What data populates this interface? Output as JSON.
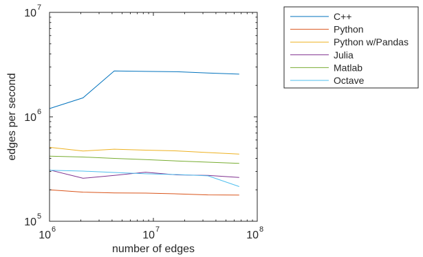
{
  "chart_data": {
    "type": "line",
    "title": "",
    "xlabel": "number of edges",
    "ylabel": "edges per second",
    "xscale": "log",
    "yscale": "log",
    "xlim": [
      1000000,
      100000000
    ],
    "ylim": [
      100000,
      10000000
    ],
    "x_ticks": [
      {
        "value": 1000000,
        "base": "10",
        "exp": "6"
      },
      {
        "value": 10000000,
        "base": "10",
        "exp": "7"
      },
      {
        "value": 100000000,
        "base": "10",
        "exp": "8"
      }
    ],
    "y_ticks": [
      {
        "value": 100000,
        "base": "10",
        "exp": "5"
      },
      {
        "value": 1000000,
        "base": "10",
        "exp": "6"
      },
      {
        "value": 10000000,
        "base": "10",
        "exp": "7"
      }
    ],
    "grid": false,
    "legend_position": "outside-right-top",
    "series": [
      {
        "name": "C++",
        "color": "#0072BD",
        "x": [
          1000000,
          2100000,
          4200000,
          8400000,
          16800000,
          33600000,
          67100000
        ],
        "y": [
          1200000,
          1520000,
          2750000,
          2720000,
          2700000,
          2630000,
          2560000
        ]
      },
      {
        "name": "Python",
        "color": "#D95319",
        "x": [
          1000000,
          2100000,
          4200000,
          8400000,
          16800000,
          33600000,
          67100000
        ],
        "y": [
          200000,
          190000,
          187000,
          186000,
          183000,
          179000,
          178000
        ]
      },
      {
        "name": "Python w/Pandas",
        "color": "#EDB120",
        "x": [
          1000000,
          2100000,
          4200000,
          8400000,
          16800000,
          33600000,
          67100000
        ],
        "y": [
          510000,
          470000,
          490000,
          480000,
          472000,
          455000,
          440000
        ]
      },
      {
        "name": "Julia",
        "color": "#7E2F8E",
        "x": [
          1000000,
          2100000,
          4200000,
          8400000,
          16800000,
          33600000,
          67100000
        ],
        "y": [
          310000,
          258000,
          275000,
          295000,
          278000,
          275000,
          263000
        ]
      },
      {
        "name": "Matlab",
        "color": "#77AC30",
        "x": [
          1000000,
          2100000,
          4200000,
          8400000,
          16800000,
          33600000,
          67100000
        ],
        "y": [
          420000,
          412000,
          400000,
          390000,
          378000,
          368000,
          358000
        ]
      },
      {
        "name": "Octave",
        "color": "#4DBEEE",
        "x": [
          1000000,
          2100000,
          4200000,
          8400000,
          16800000,
          33600000,
          67100000
        ],
        "y": [
          308000,
          302000,
          293000,
          285000,
          280000,
          272000,
          215000
        ]
      }
    ]
  }
}
